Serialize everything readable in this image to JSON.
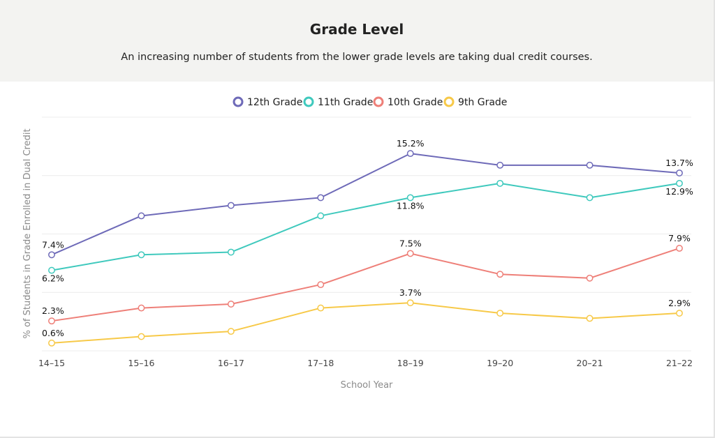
{
  "header": {
    "title": "Grade Level",
    "subtitle": "An increasing number of students from the lower grade levels are taking dual credit courses."
  },
  "chart_data": {
    "type": "line",
    "title": "Grade Level",
    "subtitle": "An increasing number of students from the lower grade levels are taking dual credit courses.",
    "xlabel": "School Year",
    "ylabel": "% of Students in Grade Enrolled in Dual Credit",
    "ylim": [
      0,
      18
    ],
    "grid": true,
    "legend_position": "top-center",
    "categories": [
      "14-15",
      "15-16",
      "16-17",
      "17-18",
      "18-19",
      "19-20",
      "20-21",
      "21-22"
    ],
    "series": [
      {
        "name": "12th Grade",
        "color": "#6e6ab8",
        "values": [
          7.4,
          10.4,
          11.2,
          11.8,
          15.2,
          14.3,
          14.3,
          13.7
        ],
        "labels": [
          "7.4%",
          "",
          "",
          "",
          "15.2%",
          "",
          "",
          "13.7%"
        ]
      },
      {
        "name": "11th Grade",
        "color": "#3fc9bd",
        "values": [
          6.2,
          7.4,
          7.6,
          10.4,
          11.8,
          12.9,
          11.8,
          12.9
        ],
        "labels": [
          "6.2%",
          "",
          "",
          "",
          "11.8%",
          "",
          "",
          "12.9%"
        ]
      },
      {
        "name": "10th Grade",
        "color": "#ee7f78",
        "values": [
          2.3,
          3.3,
          3.6,
          5.1,
          7.5,
          5.9,
          5.6,
          7.9
        ],
        "labels": [
          "2.3%",
          "",
          "",
          "",
          "7.5%",
          "",
          "",
          "7.9%"
        ]
      },
      {
        "name": "9th Grade",
        "color": "#f7c948",
        "values": [
          0.6,
          1.1,
          1.5,
          3.3,
          3.7,
          2.9,
          2.5,
          2.9
        ],
        "labels": [
          "0.6%",
          "",
          "",
          "",
          "3.7%",
          "",
          "",
          "2.9%"
        ]
      }
    ]
  }
}
